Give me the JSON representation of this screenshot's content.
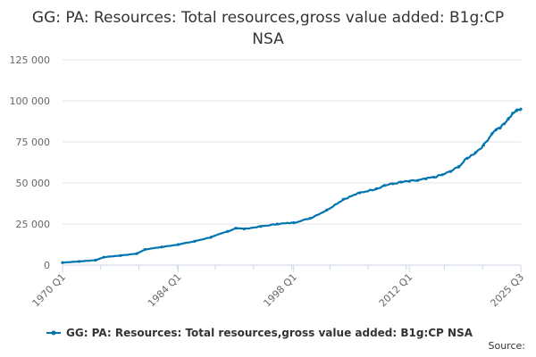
{
  "chart_data": {
    "type": "line",
    "title": "GG: PA: Resources: Total resources,gross value added: B1g:CP NSA",
    "xlabel": "",
    "ylabel": "",
    "ylim": [
      0,
      125000
    ],
    "y_ticks": [
      0,
      25000,
      50000,
      75000,
      100000,
      125000
    ],
    "y_tick_labels": [
      "0",
      "25 000",
      "50 000",
      "75 000",
      "100 000",
      "125 000"
    ],
    "x_ticks": [
      {
        "label": "1970 Q1",
        "year": 1970.0
      },
      {
        "label": "1984 Q1",
        "year": 1984.0
      },
      {
        "label": "1998 Q1",
        "year": 1998.0
      },
      {
        "label": "2012 Q1",
        "year": 2012.0
      },
      {
        "label": "2025 Q3",
        "year": 2025.5
      }
    ],
    "x_range": [
      1970.0,
      2025.5
    ],
    "grid": true,
    "legend_position": "bottom",
    "color": "#0075b0",
    "series": [
      {
        "name": "GG: PA: Resources: Total resources,gross value added: B1g:CP NSA",
        "x": [
          1970,
          1972,
          1974,
          1975,
          1977,
          1979,
          1980,
          1982,
          1984,
          1986,
          1988,
          1990,
          1991,
          1992,
          1994,
          1996,
          1998,
          2000,
          2002,
          2004,
          2006,
          2008,
          2009,
          2010,
          2011,
          2012,
          2013,
          2014,
          2015,
          2016,
          2017,
          2018,
          2019,
          2020,
          2021,
          2022,
          2022.5,
          2023,
          2023.5,
          2024,
          2024.5,
          2025,
          2025.5
        ],
        "values": [
          1500,
          2200,
          3000,
          4800,
          5800,
          7000,
          9500,
          11000,
          12500,
          14500,
          17000,
          20500,
          22500,
          22000,
          23500,
          25000,
          25800,
          28500,
          33500,
          40000,
          44000,
          46500,
          48500,
          49500,
          50500,
          51000,
          51500,
          52500,
          53500,
          55000,
          57000,
          60000,
          65000,
          68500,
          73000,
          80000,
          82500,
          83500,
          86000,
          89000,
          92500,
          94000,
          95000
        ]
      }
    ]
  },
  "legend": {
    "label": "GG: PA: Resources: Total resources,gross value added: B1g:CP NSA"
  },
  "footer": {
    "source_label": "Source:"
  }
}
